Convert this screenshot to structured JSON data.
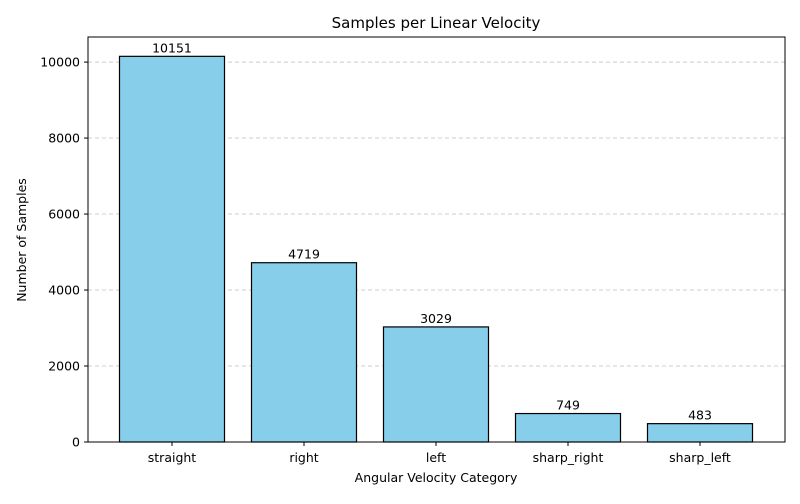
{
  "chart_data": {
    "type": "bar",
    "title": "Samples per Linear Velocity",
    "xlabel": "Angular Velocity Category",
    "ylabel": "Number of Samples",
    "categories": [
      "straight",
      "right",
      "left",
      "sharp_right",
      "sharp_left"
    ],
    "values": [
      10151,
      4719,
      3029,
      749,
      483
    ],
    "data_labels": [
      "10151",
      "4719",
      "3029",
      "749",
      "483"
    ],
    "ylim": [
      0,
      10660
    ],
    "yticks": [
      0,
      2000,
      4000,
      6000,
      8000,
      10000
    ],
    "ytick_labels": [
      "0",
      "2000",
      "4000",
      "6000",
      "8000",
      "10000"
    ],
    "grid": "y-dashed",
    "legend": "none"
  },
  "colors": {
    "bar_fill": "#87ceeb",
    "bar_edge": "#000000",
    "grid": "#cccccc",
    "axis": "#000000"
  }
}
